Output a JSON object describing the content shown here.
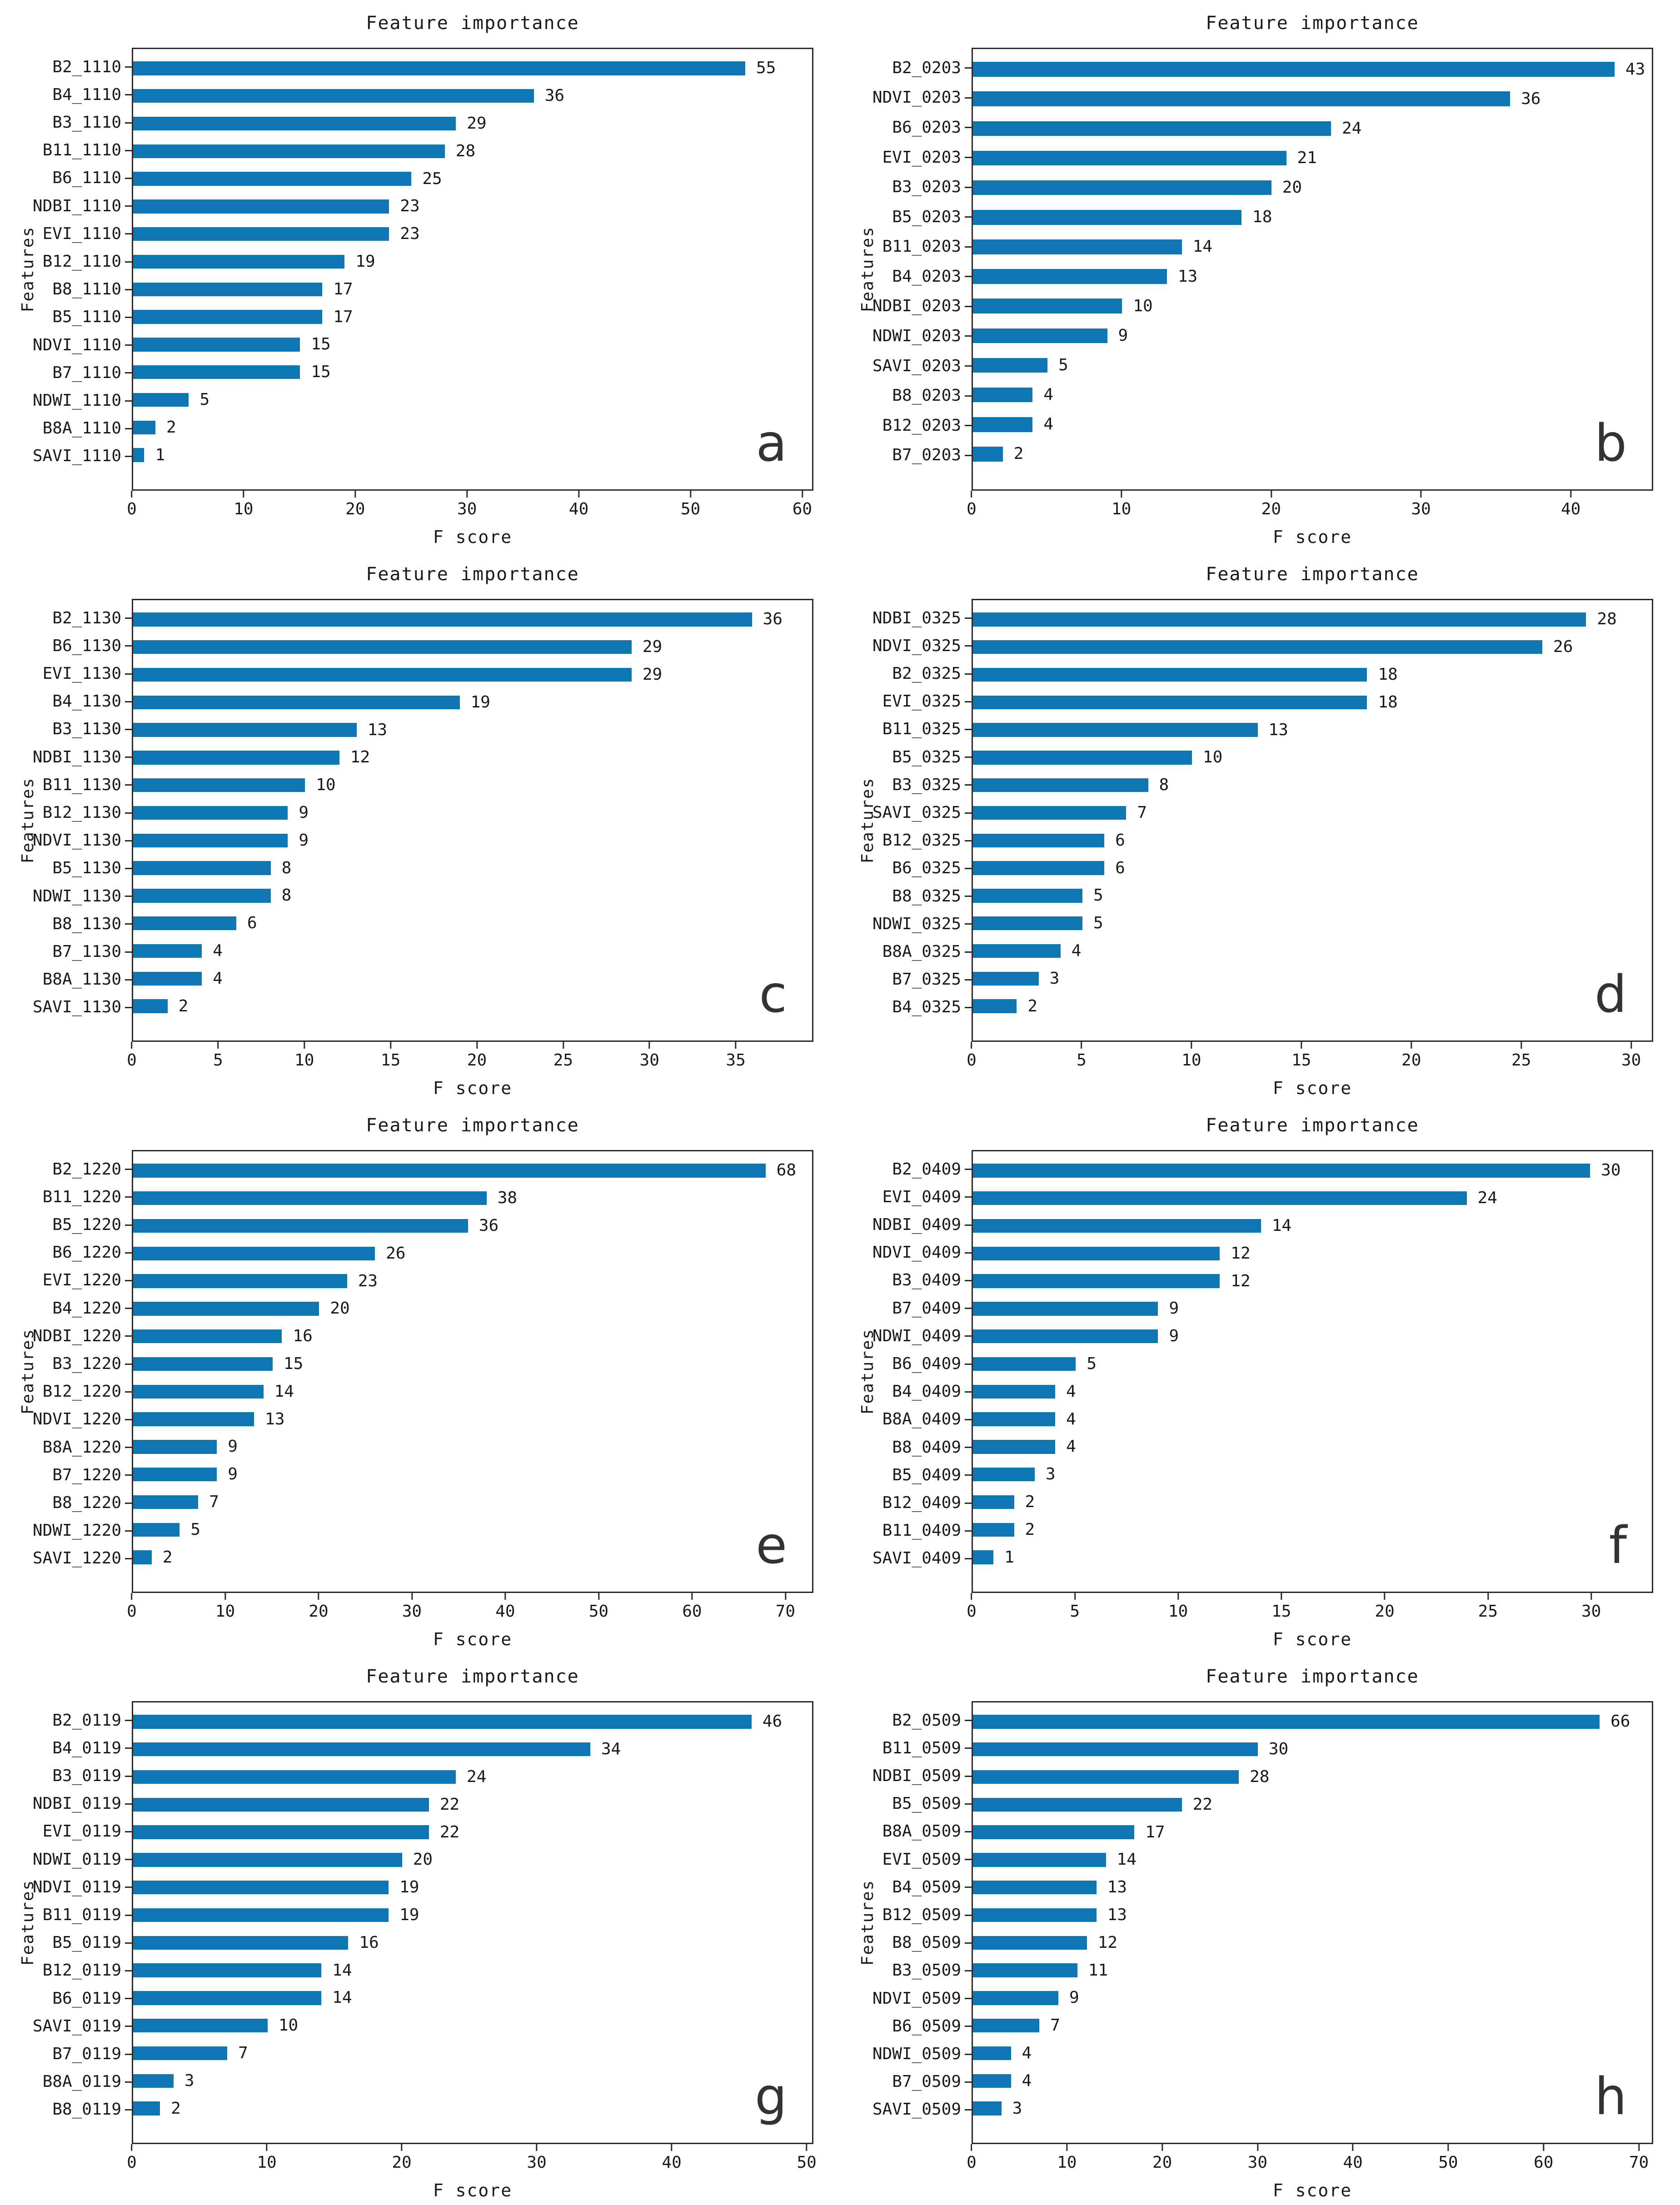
{
  "figure": {
    "bar_color": "#0e77b3",
    "axis_color": "#2a2a2a",
    "text_color": "#1a1a1a",
    "title": "Feature importance",
    "xlabel": "F score",
    "ylabel": "Features"
  },
  "chart_data": [
    {
      "type": "bar",
      "orientation": "horizontal",
      "letter": "a",
      "title": "Feature importance",
      "xlabel": "F score",
      "ylabel": "Features",
      "categories": [
        "B2_1110",
        "B4_1110",
        "B3_1110",
        "B11_1110",
        "B6_1110",
        "NDBI_1110",
        "EVI_1110",
        "B12_1110",
        "B8_1110",
        "B5_1110",
        "NDVI_1110",
        "B7_1110",
        "NDWI_1110",
        "B8A_1110",
        "SAVI_1110"
      ],
      "values": [
        55,
        36,
        29,
        28,
        25,
        23,
        23,
        19,
        17,
        17,
        15,
        15,
        5,
        2,
        1
      ],
      "xticks": [
        0,
        10,
        20,
        30,
        40,
        50,
        60
      ],
      "xlim": [
        0,
        61
      ],
      "grid": false
    },
    {
      "type": "bar",
      "orientation": "horizontal",
      "letter": "b",
      "title": "Feature importance",
      "xlabel": "F score",
      "ylabel": "Features",
      "categories": [
        "B2_0203",
        "NDVI_0203",
        "B6_0203",
        "EVI_0203",
        "B3_0203",
        "B5_0203",
        "B11_0203",
        "B4_0203",
        "NDBI_0203",
        "NDWI_0203",
        "SAVI_0203",
        "B8_0203",
        "B12_0203",
        "B7_0203"
      ],
      "values": [
        43,
        36,
        24,
        21,
        20,
        18,
        14,
        13,
        10,
        9,
        5,
        4,
        4,
        2
      ],
      "xticks": [
        0,
        10,
        20,
        30,
        40
      ],
      "xlim": [
        0,
        45.5
      ],
      "grid": false
    },
    {
      "type": "bar",
      "orientation": "horizontal",
      "letter": "c",
      "title": "Feature importance",
      "xlabel": "F score",
      "ylabel": "Features",
      "categories": [
        "B2_1130",
        "B6_1130",
        "EVI_1130",
        "B4_1130",
        "B3_1130",
        "NDBI_1130",
        "B11_1130",
        "B12_1130",
        "NDVI_1130",
        "B5_1130",
        "NDWI_1130",
        "B8_1130",
        "B7_1130",
        "B8A_1130",
        "SAVI_1130"
      ],
      "values": [
        36,
        29,
        29,
        19,
        13,
        12,
        10,
        9,
        9,
        8,
        8,
        6,
        4,
        4,
        2
      ],
      "xticks": [
        0,
        5,
        10,
        15,
        20,
        25,
        30,
        35
      ],
      "xlim": [
        0,
        39.5
      ],
      "grid": false
    },
    {
      "type": "bar",
      "orientation": "horizontal",
      "letter": "d",
      "title": "Feature importance",
      "xlabel": "F score",
      "ylabel": "Features",
      "categories": [
        "NDBI_0325",
        "NDVI_0325",
        "B2_0325",
        "EVI_0325",
        "B11_0325",
        "B5_0325",
        "B3_0325",
        "SAVI_0325",
        "B12_0325",
        "B6_0325",
        "B8_0325",
        "NDWI_0325",
        "B8A_0325",
        "B7_0325",
        "B4_0325"
      ],
      "values": [
        28,
        26,
        18,
        18,
        13,
        10,
        8,
        7,
        6,
        6,
        5,
        5,
        4,
        3,
        2
      ],
      "xticks": [
        0,
        5,
        10,
        15,
        20,
        25,
        30
      ],
      "xlim": [
        0,
        31
      ],
      "grid": false
    },
    {
      "type": "bar",
      "orientation": "horizontal",
      "letter": "e",
      "title": "Feature importance",
      "xlabel": "F score",
      "ylabel": "Features",
      "categories": [
        "B2_1220",
        "B11_1220",
        "B5_1220",
        "B6_1220",
        "EVI_1220",
        "B4_1220",
        "NDBI_1220",
        "B3_1220",
        "B12_1220",
        "NDVI_1220",
        "B8A_1220",
        "B7_1220",
        "B8_1220",
        "NDWI_1220",
        "SAVI_1220"
      ],
      "values": [
        68,
        38,
        36,
        26,
        23,
        20,
        16,
        15,
        14,
        13,
        9,
        9,
        7,
        5,
        2
      ],
      "xticks": [
        0,
        10,
        20,
        30,
        40,
        50,
        60,
        70
      ],
      "xlim": [
        0,
        73
      ],
      "grid": false
    },
    {
      "type": "bar",
      "orientation": "horizontal",
      "letter": "f",
      "title": "Feature importance",
      "xlabel": "F score",
      "ylabel": "Features",
      "categories": [
        "B2_0409",
        "EVI_0409",
        "NDBI_0409",
        "NDVI_0409",
        "B3_0409",
        "B7_0409",
        "NDWI_0409",
        "B6_0409",
        "B4_0409",
        "B8A_0409",
        "B8_0409",
        "B5_0409",
        "B12_0409",
        "B11_0409",
        "SAVI_0409"
      ],
      "values": [
        30,
        24,
        14,
        12,
        12,
        9,
        9,
        5,
        4,
        4,
        4,
        3,
        2,
        2,
        1
      ],
      "xticks": [
        0,
        5,
        10,
        15,
        20,
        25,
        30
      ],
      "xlim": [
        0,
        33
      ],
      "grid": false
    },
    {
      "type": "bar",
      "orientation": "horizontal",
      "letter": "g",
      "title": "Feature importance",
      "xlabel": "F score",
      "ylabel": "Features",
      "categories": [
        "B2_0119",
        "B4_0119",
        "B3_0119",
        "NDBI_0119",
        "EVI_0119",
        "NDWI_0119",
        "NDVI_0119",
        "B11_0119",
        "B5_0119",
        "B12_0119",
        "B6_0119",
        "SAVI_0119",
        "B7_0119",
        "B8A_0119",
        "B8_0119"
      ],
      "values": [
        46,
        34,
        24,
        22,
        22,
        20,
        19,
        19,
        16,
        14,
        14,
        10,
        7,
        3,
        2
      ],
      "xticks": [
        0,
        10,
        20,
        30,
        40,
        50
      ],
      "xlim": [
        0,
        50.5
      ],
      "grid": false
    },
    {
      "type": "bar",
      "orientation": "horizontal",
      "letter": "h",
      "title": "Feature importance",
      "xlabel": "F score",
      "ylabel": "Features",
      "categories": [
        "B2_0509",
        "B11_0509",
        "NDBI_0509",
        "B5_0509",
        "B8A_0509",
        "EVI_0509",
        "B4_0509",
        "B12_0509",
        "B8_0509",
        "B3_0509",
        "NDVI_0509",
        "B6_0509",
        "NDWI_0509",
        "B7_0509",
        "SAVI_0509"
      ],
      "values": [
        66,
        30,
        28,
        22,
        17,
        14,
        13,
        13,
        12,
        11,
        9,
        7,
        4,
        4,
        3
      ],
      "xticks": [
        0,
        10,
        20,
        30,
        40,
        50,
        60,
        70
      ],
      "xlim": [
        0,
        71.5
      ],
      "grid": false
    }
  ]
}
